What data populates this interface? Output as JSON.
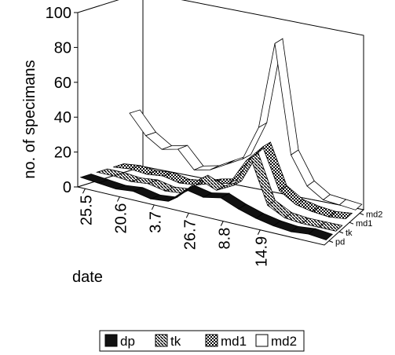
{
  "chart_data": {
    "type": "line",
    "style": "3d-ribbon",
    "ylabel": "no. of specimans",
    "xlabel": "date",
    "ylim": [
      0,
      100
    ],
    "y_ticks": [
      "0",
      "20",
      "40",
      "60",
      "80",
      "100"
    ],
    "x_tick_labels": [
      "25.5",
      "20.6",
      "3.7",
      "26.7",
      "8.8",
      "14.9"
    ],
    "depth_labels": [
      "pd",
      "tk",
      "md1",
      "md2"
    ],
    "grid": false,
    "legend_placement": "bottom",
    "series": [
      {
        "name": "dp",
        "fill": "#111111",
        "values": [
          5,
          4,
          3,
          4,
          2,
          3,
          12,
          10,
          12,
          8,
          5,
          3,
          2,
          3,
          2
        ]
      },
      {
        "name": "tk",
        "fill": "#555555",
        "values": [
          5,
          5,
          4,
          5,
          3,
          4,
          14,
          10,
          15,
          33,
          8,
          3,
          2,
          2,
          2
        ]
      },
      {
        "name": "md1",
        "fill": "#bbbbbb",
        "values": [
          5,
          6,
          5,
          6,
          4,
          5,
          8,
          10,
          25,
          35,
          12,
          6,
          4,
          3,
          4
        ]
      },
      {
        "name": "md2",
        "fill": "#ffffff",
        "values": [
          33,
          22,
          16,
          18,
          8,
          10,
          15,
          20,
          40,
          90,
          28,
          12,
          6,
          5,
          4
        ]
      }
    ]
  }
}
